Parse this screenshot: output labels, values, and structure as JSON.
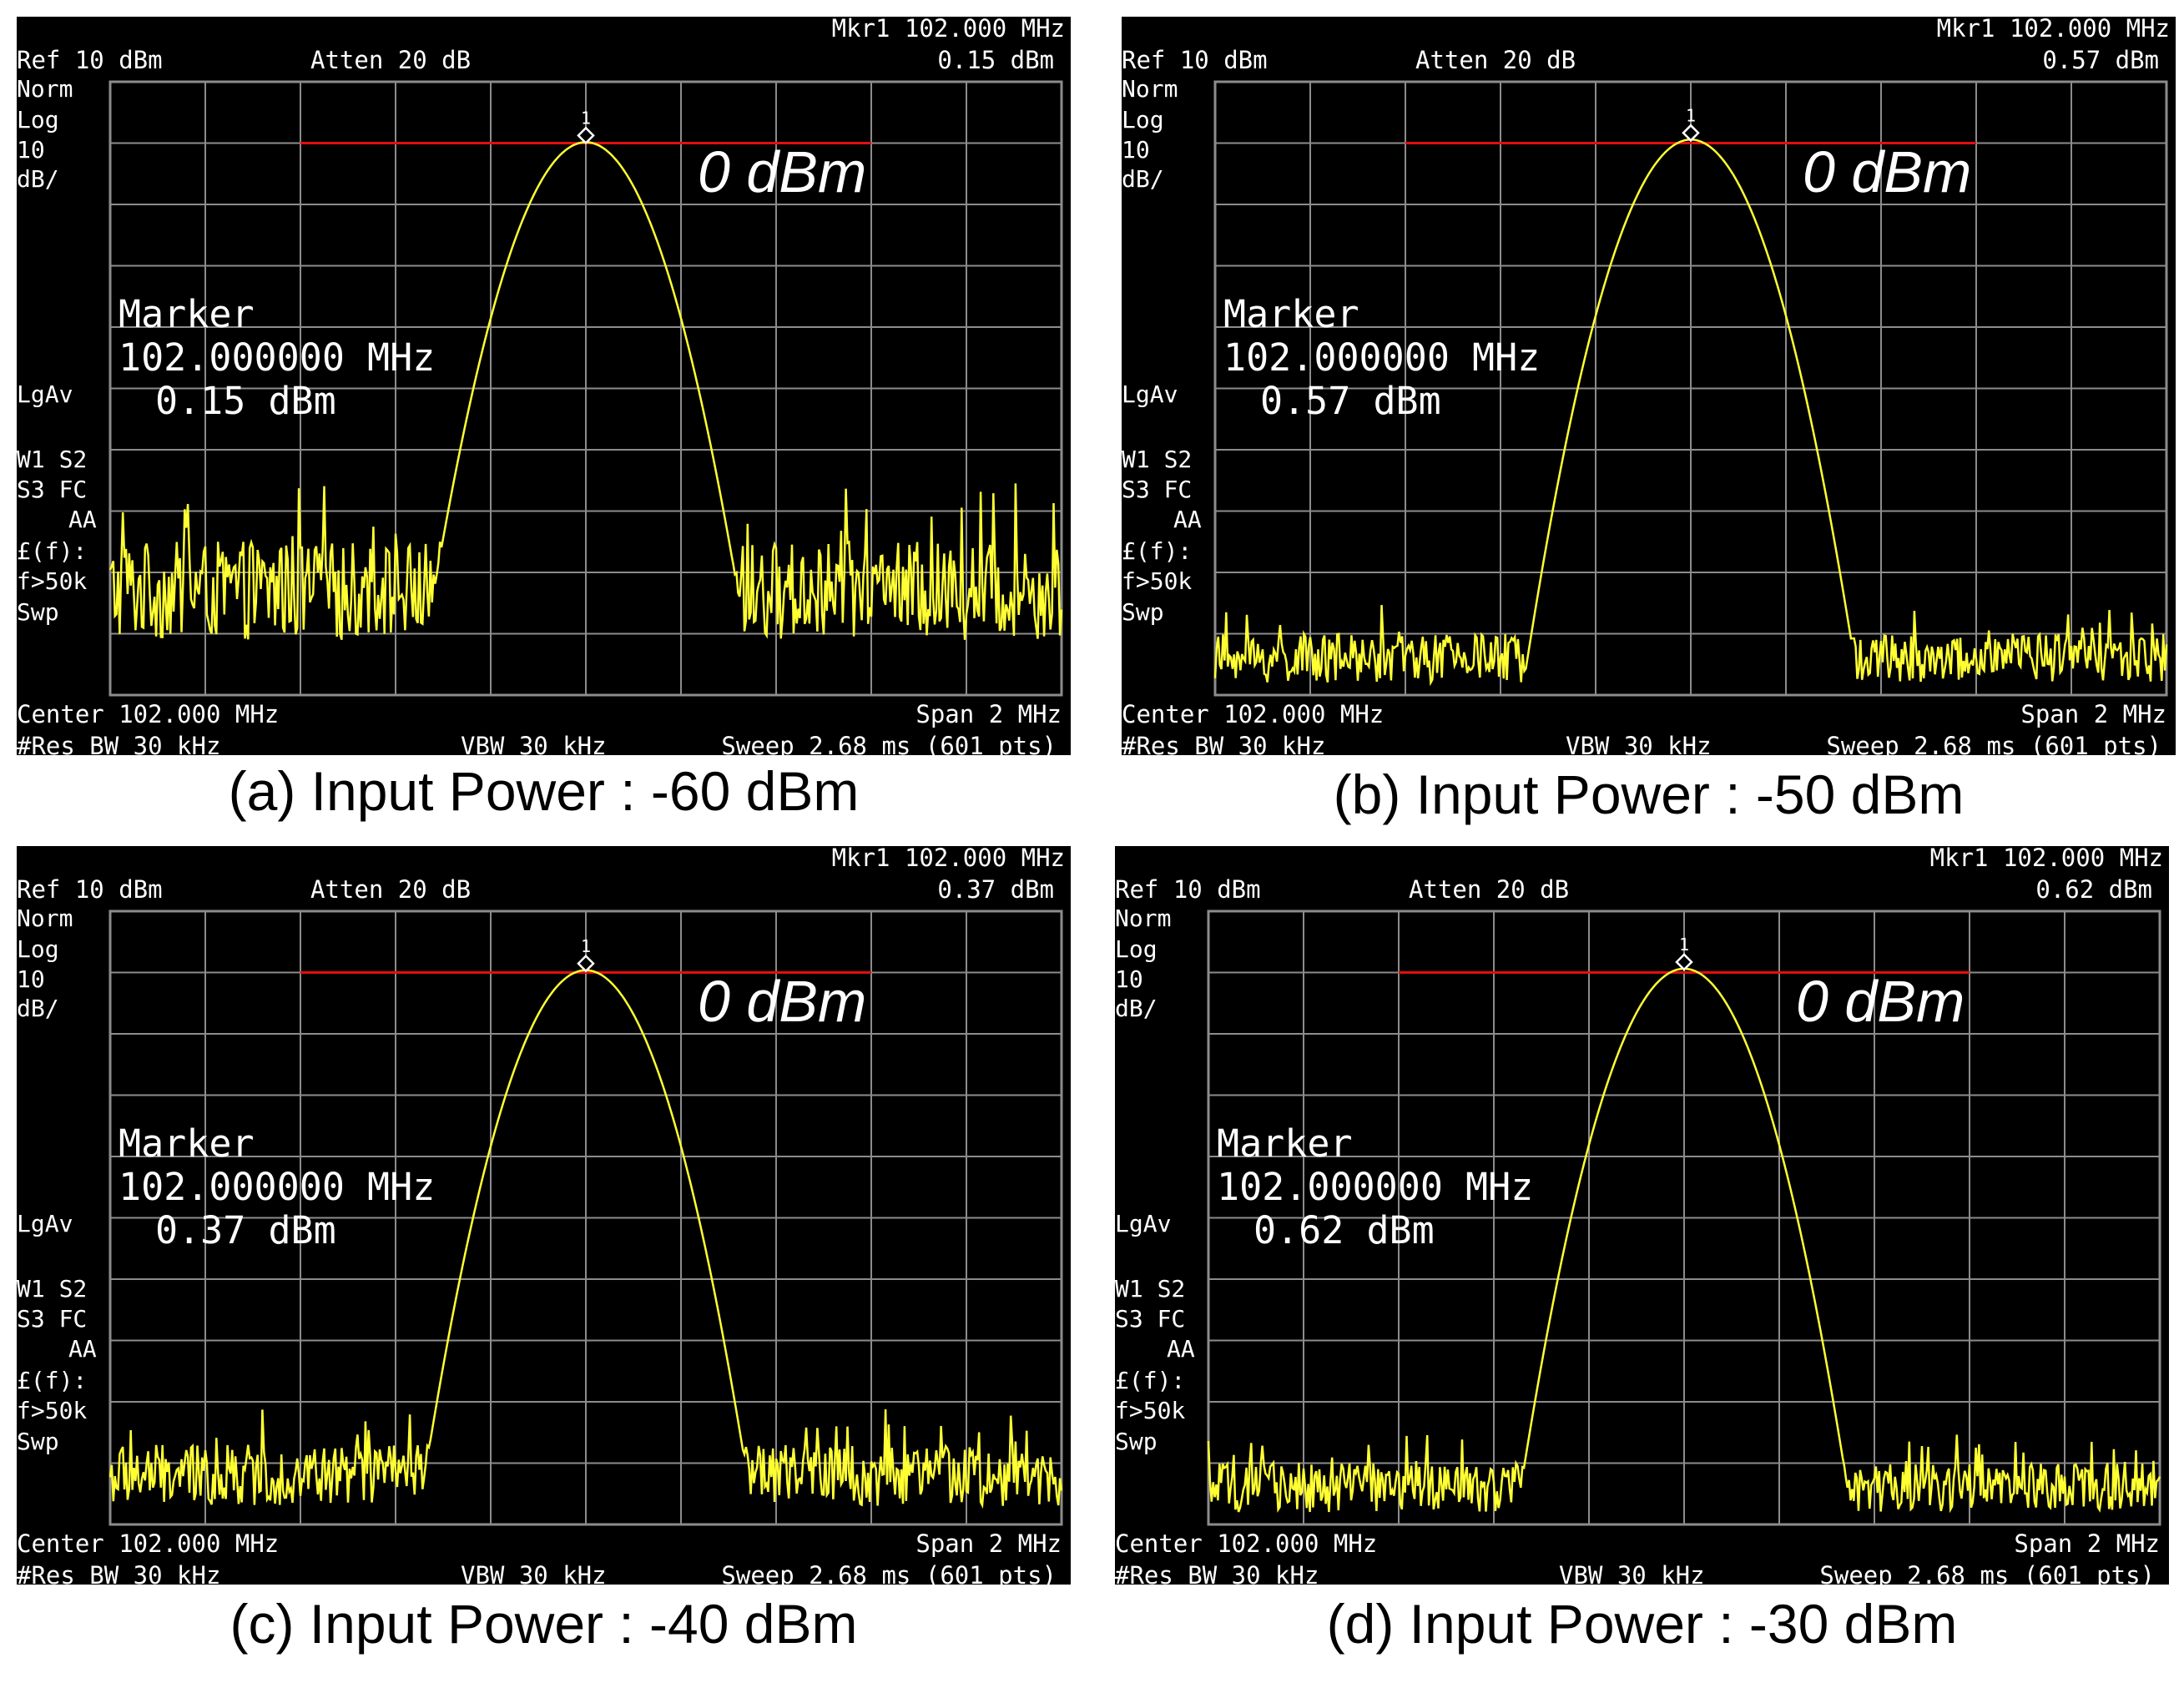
{
  "colors": {
    "screen": "#000000",
    "grid": "#8c8c8c",
    "trace": "#ffff33",
    "ref_line": "#e01010",
    "text": "#ffffff"
  },
  "chart_data": [
    {
      "type": "line",
      "caption": "(a) Input Power : -60 dBm",
      "header": {
        "ref": "Ref 10 dBm",
        "atten": "Atten 20 dB",
        "mkr": "Mkr1  102.000 MHz",
        "mkr_val": "0.15 dBm"
      },
      "side": [
        "Norm",
        "Log",
        "10",
        "dB/",
        "LgAv",
        "W1  S2",
        "S3  FC",
        "AA",
        "£(f):",
        "f>50k",
        "Swp"
      ],
      "footer": {
        "center": "Center 102.000 MHz",
        "span": "Span 2 MHz",
        "rbw": "#Res BW 30 kHz",
        "vbw": "VBW 30 kHz",
        "sweep": "Sweep 2.68 ms (601 pts)"
      },
      "marker": {
        "title": "Marker",
        "freq": "102.000000 MHz",
        "value": "0.15 dBm",
        "id": "1"
      },
      "annotation": "0 dBm",
      "xlim": [
        101.0,
        103.0
      ],
      "ylim": [
        -90,
        10
      ],
      "grid": true,
      "peak": {
        "freq": 102.0,
        "level": 0.15
      },
      "noise_floor": -73,
      "noise_amp": 8,
      "ref_line": {
        "level": 0,
        "from": 101.4,
        "to": 102.6
      }
    },
    {
      "type": "line",
      "caption": "(b) Input Power : -50 dBm",
      "header": {
        "ref": "Ref 10 dBm",
        "atten": "Atten 20 dB",
        "mkr": "Mkr1  102.000 MHz",
        "mkr_val": "0.57 dBm"
      },
      "side": [
        "Norm",
        "Log",
        "10",
        "dB/",
        "LgAv",
        "W1  S2",
        "S3  FC",
        "AA",
        "£(f):",
        "f>50k",
        "Swp"
      ],
      "footer": {
        "center": "Center 102.000 MHz",
        "span": "Span 2 MHz",
        "rbw": "#Res BW 30 kHz",
        "vbw": "VBW 30 kHz",
        "sweep": "Sweep 2.68 ms (601 pts)"
      },
      "marker": {
        "title": "Marker",
        "freq": "102.000000 MHz",
        "value": "0.57 dBm",
        "id": "1"
      },
      "annotation": "0 dBm",
      "xlim": [
        101.0,
        103.0
      ],
      "ylim": [
        -90,
        10
      ],
      "grid": true,
      "peak": {
        "freq": 102.0,
        "level": 0.57
      },
      "noise_floor": -84,
      "noise_amp": 4,
      "ref_line": {
        "level": 0,
        "from": 101.4,
        "to": 102.6
      }
    },
    {
      "type": "line",
      "caption": "(c) Input Power : -40 dBm",
      "header": {
        "ref": "Ref 10 dBm",
        "atten": "Atten 20 dB",
        "mkr": "Mkr1  102.000 MHz",
        "mkr_val": "0.37 dBm"
      },
      "side": [
        "Norm",
        "Log",
        "10",
        "dB/",
        "LgAv",
        "W1  S2",
        "S3  FC",
        "AA",
        "£(f):",
        "f>50k",
        "Swp"
      ],
      "footer": {
        "center": "Center 102.000 MHz",
        "span": "Span 2 MHz",
        "rbw": "#Res BW 30 kHz",
        "vbw": "VBW 30 kHz",
        "sweep": "Sweep 2.68 ms (601 pts)"
      },
      "marker": {
        "title": "Marker",
        "freq": "102.000000 MHz",
        "value": "0.37 dBm",
        "id": "1"
      },
      "annotation": "0 dBm",
      "xlim": [
        101.0,
        103.0
      ],
      "ylim": [
        -90,
        10
      ],
      "grid": true,
      "peak": {
        "freq": 102.0,
        "level": 0.37
      },
      "noise_floor": -82,
      "noise_amp": 5,
      "ref_line": {
        "level": 0,
        "from": 101.4,
        "to": 102.6
      }
    },
    {
      "type": "line",
      "caption": "(d) Input Power : -30 dBm",
      "header": {
        "ref": "Ref 10 dBm",
        "atten": "Atten 20 dB",
        "mkr": "Mkr1  102.000 MHz",
        "mkr_val": "0.62 dBm"
      },
      "side": [
        "Norm",
        "Log",
        "10",
        "dB/",
        "LgAv",
        "W1  S2",
        "S3  FC",
        "AA",
        "£(f):",
        "f>50k",
        "Swp"
      ],
      "footer": {
        "center": "Center 102.000 MHz",
        "span": "Span 2 MHz",
        "rbw": "#Res BW 30 kHz",
        "vbw": "VBW 30 kHz",
        "sweep": "Sweep 2.68 ms (601 pts)"
      },
      "marker": {
        "title": "Marker",
        "freq": "102.000000 MHz",
        "value": "0.62 dBm",
        "id": "1"
      },
      "annotation": "0 dBm",
      "xlim": [
        101.0,
        103.0
      ],
      "ylim": [
        -90,
        10
      ],
      "grid": true,
      "peak": {
        "freq": 102.0,
        "level": 0.62
      },
      "noise_floor": -84,
      "noise_amp": 4,
      "ref_line": {
        "level": 0,
        "from": 101.4,
        "to": 102.6
      }
    }
  ]
}
